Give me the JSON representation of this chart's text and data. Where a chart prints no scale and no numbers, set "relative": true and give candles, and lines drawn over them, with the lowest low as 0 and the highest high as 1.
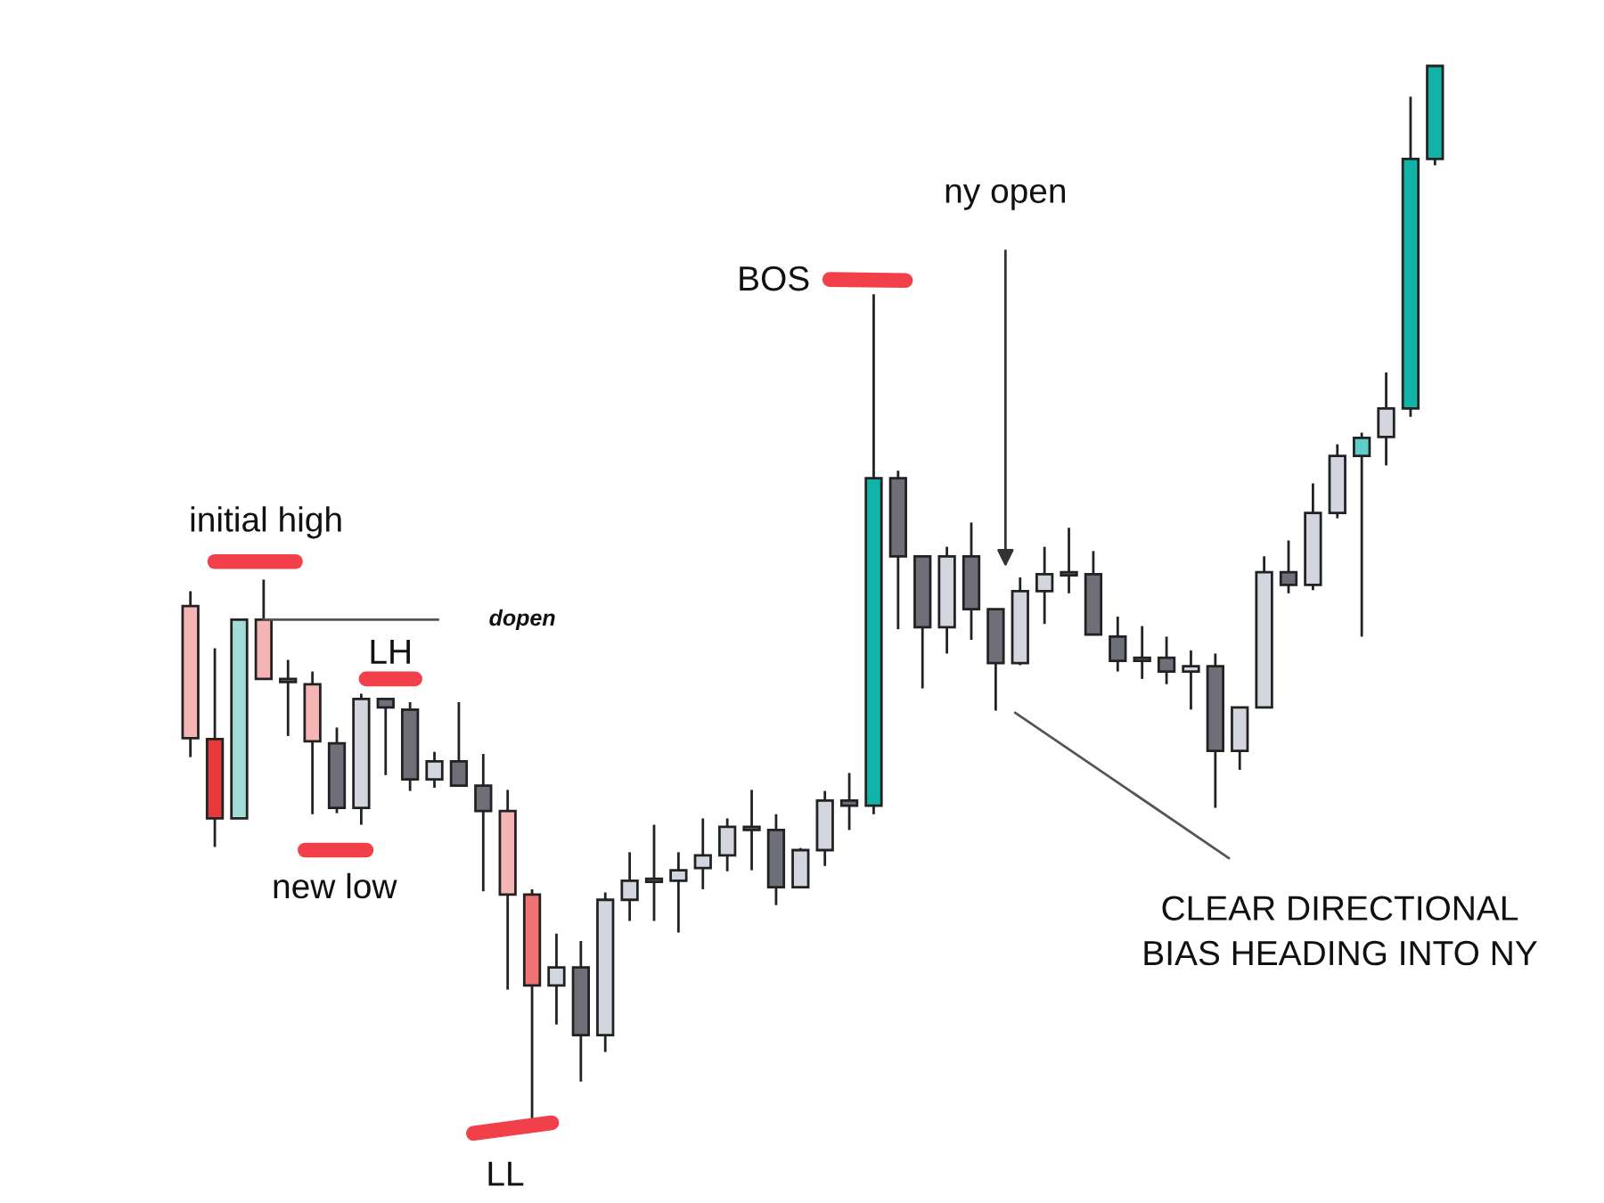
{
  "chart_data": {
    "type": "candlestick",
    "relative": true,
    "categories": [
      null,
      null,
      null,
      null,
      null,
      null,
      null,
      null,
      null,
      null,
      null,
      null,
      null,
      null,
      null,
      null,
      null,
      null,
      null,
      null,
      null,
      null,
      null,
      null,
      null,
      null,
      null,
      null,
      null,
      null,
      null,
      null,
      null,
      null,
      null,
      null,
      null,
      null,
      null,
      null,
      null,
      null,
      null,
      null,
      null,
      null,
      null,
      null,
      null,
      null,
      null,
      null
    ],
    "ohlc": [
      [
        0.489,
        0.503,
        0.346,
        0.364
      ],
      [
        0.363,
        0.449,
        0.261,
        0.288
      ],
      [
        0.288,
        0.476,
        0.288,
        0.476
      ],
      [
        0.476,
        0.514,
        0.42,
        0.42
      ],
      [
        0.42,
        0.438,
        0.366,
        0.417
      ],
      [
        0.415,
        0.427,
        0.292,
        0.361
      ],
      [
        0.359,
        0.374,
        0.293,
        0.298
      ],
      [
        0.298,
        0.406,
        0.282,
        0.401
      ],
      [
        0.401,
        0.401,
        0.329,
        0.393
      ],
      [
        0.391,
        0.398,
        0.314,
        0.325
      ],
      [
        0.325,
        0.351,
        0.317,
        0.342
      ],
      [
        0.342,
        0.398,
        0.319,
        0.319
      ],
      [
        0.319,
        0.349,
        0.219,
        0.295
      ],
      [
        0.295,
        0.315,
        0.126,
        0.216
      ],
      [
        0.216,
        0.221,
        0.0,
        0.13
      ],
      [
        0.13,
        0.179,
        0.093,
        0.147
      ],
      [
        0.147,
        0.172,
        0.039,
        0.083
      ],
      [
        0.083,
        0.218,
        0.067,
        0.211
      ],
      [
        0.211,
        0.256,
        0.191,
        0.229
      ],
      [
        0.228,
        0.282,
        0.191,
        0.231
      ],
      [
        0.229,
        0.256,
        0.18,
        0.239
      ],
      [
        0.241,
        0.288,
        0.221,
        0.253
      ],
      [
        0.253,
        0.288,
        0.238,
        0.28
      ],
      [
        0.28,
        0.315,
        0.239,
        0.277
      ],
      [
        0.277,
        0.292,
        0.206,
        0.223
      ],
      [
        0.223,
        0.26,
        0.223,
        0.258
      ],
      [
        0.258,
        0.314,
        0.243,
        0.305
      ],
      [
        0.305,
        0.331,
        0.277,
        0.3
      ],
      [
        0.3,
        0.784,
        0.292,
        0.61
      ],
      [
        0.61,
        0.617,
        0.467,
        0.536
      ],
      [
        0.536,
        0.536,
        0.411,
        0.469
      ],
      [
        0.469,
        0.545,
        0.444,
        0.536
      ],
      [
        0.536,
        0.568,
        0.457,
        0.486
      ],
      [
        0.486,
        0.486,
        0.39,
        0.435
      ],
      [
        0.435,
        0.516,
        0.433,
        0.503
      ],
      [
        0.503,
        0.545,
        0.472,
        0.519
      ],
      [
        0.521,
        0.563,
        0.501,
        0.518
      ],
      [
        0.519,
        0.541,
        0.462,
        0.462
      ],
      [
        0.46,
        0.479,
        0.427,
        0.437
      ],
      [
        0.44,
        0.47,
        0.42,
        0.437
      ],
      [
        0.44,
        0.46,
        0.415,
        0.427
      ],
      [
        0.427,
        0.447,
        0.391,
        0.432
      ],
      [
        0.432,
        0.444,
        0.298,
        0.352
      ],
      [
        0.352,
        0.393,
        0.334,
        0.393
      ],
      [
        0.393,
        0.536,
        0.393,
        0.521
      ],
      [
        0.521,
        0.551,
        0.501,
        0.509
      ],
      [
        0.509,
        0.605,
        0.504,
        0.577
      ],
      [
        0.577,
        0.642,
        0.572,
        0.631
      ],
      [
        0.631,
        0.653,
        0.46,
        0.648
      ],
      [
        0.649,
        0.71,
        0.622,
        0.676
      ],
      [
        0.676,
        0.971,
        0.668,
        0.912
      ],
      [
        0.912,
        1.0,
        0.906,
        1.0
      ]
    ],
    "colors": [
      "#f5b5b5",
      "#e53a3a",
      "#a3dcd6",
      "#f5b5b5",
      "#6e6f78",
      "#f5b5b5",
      "#6e6f78",
      "#d3d6de",
      "#6e6f78",
      "#6e6f78",
      "#d3d6de",
      "#6e6f78",
      "#6e6f78",
      "#f5b5b5",
      "#f07272",
      "#d3d6de",
      "#6e6f78",
      "#d3d6de",
      "#d3d6de",
      "#6e6f78",
      "#d3d6de",
      "#d3d6de",
      "#d3d6de",
      "#6e6f78",
      "#6e6f78",
      "#d3d6de",
      "#d3d6de",
      "#6e6f78",
      "#10b3a6",
      "#6e6f78",
      "#6e6f78",
      "#d3d6de",
      "#6e6f78",
      "#6e6f78",
      "#d3d6de",
      "#d3d6de",
      "#6e6f78",
      "#6e6f78",
      "#6e6f78",
      "#6e6f78",
      "#6e6f78",
      "#d3d6de",
      "#6e6f78",
      "#d3d6de",
      "#d3d6de",
      "#6e6f78",
      "#d3d6de",
      "#d3d6de",
      "#5ecfc6",
      "#d3d6de",
      "#10b3a6",
      "#10b3a6"
    ],
    "annotations": [
      "initial high",
      "dopen",
      "LH",
      "new low",
      "LL",
      "BOS",
      "ny open",
      "CLEAR DIRECTIONAL\nBIAS HEADING INTO NY"
    ]
  }
}
